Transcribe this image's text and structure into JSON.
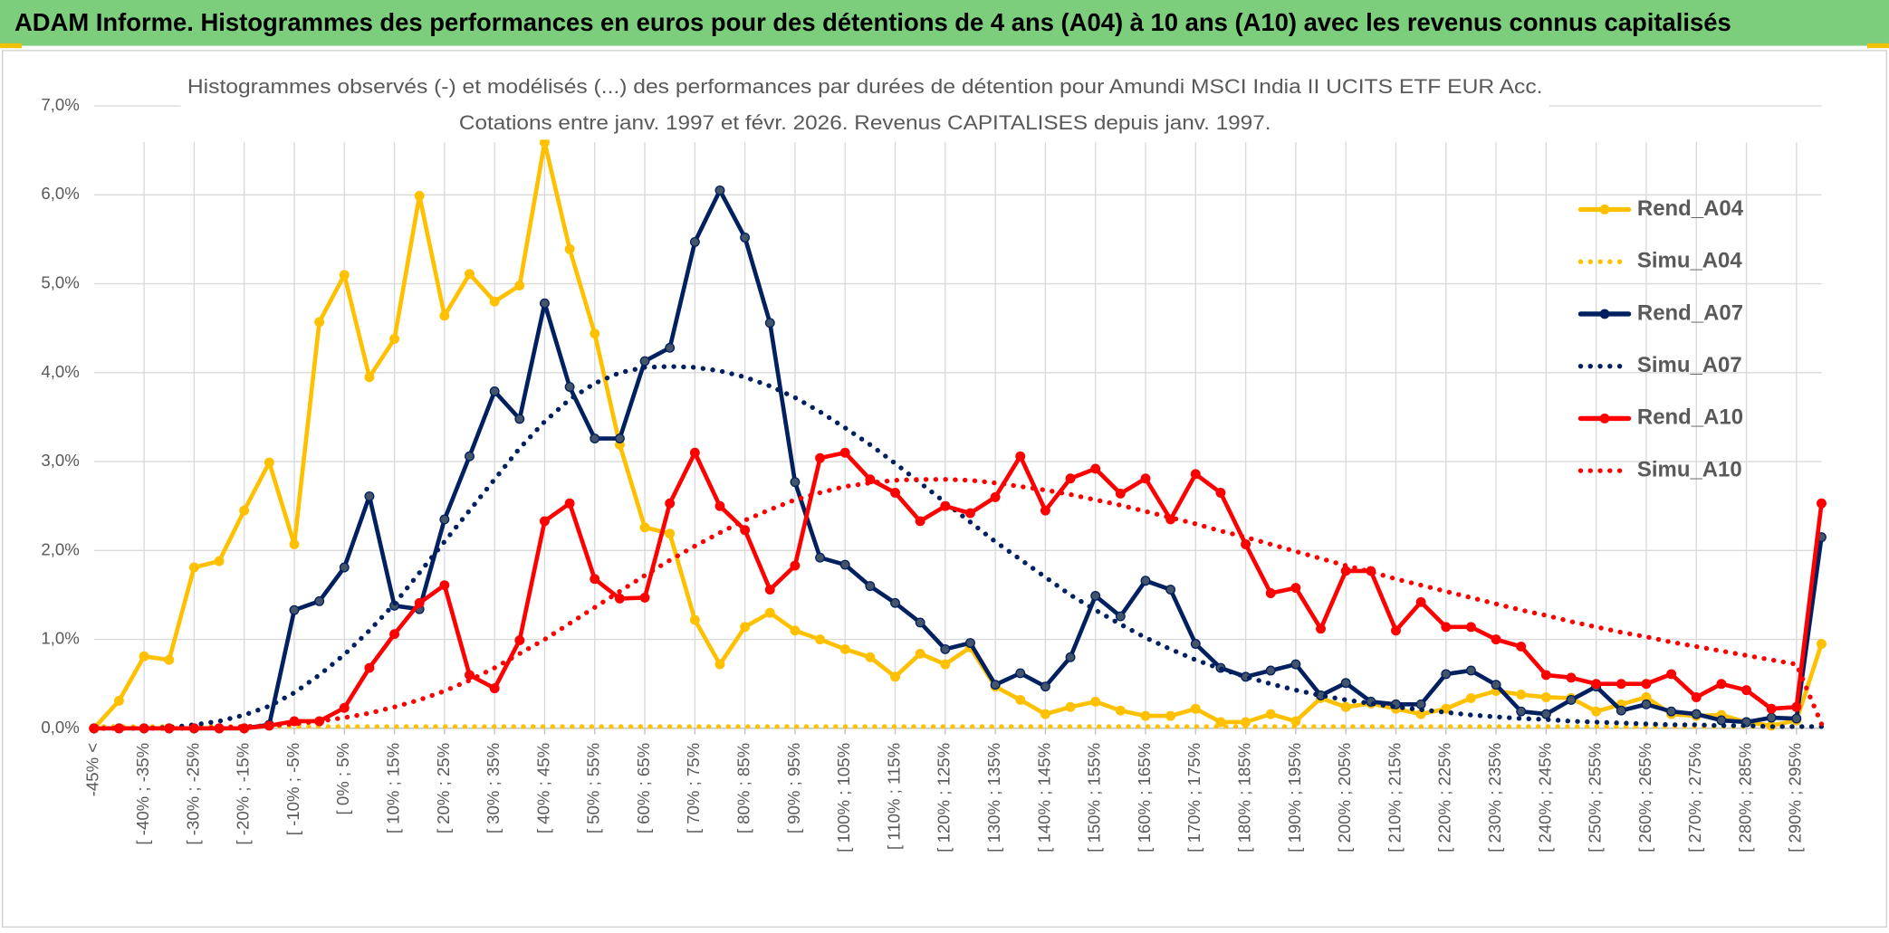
{
  "header": {
    "title": "ADAM Informe. Histogrammes des performances en euros pour des détentions de 4 ans (A04) à 10 ans (A10) avec les revenus connus capitalisés"
  },
  "chart_data": {
    "type": "line",
    "title": "Histogrammes observés (-) et modélisés (...) des performances par durées de détention pour Amundi MSCI India II UCITS ETF EUR Acc.",
    "subtitle": "Cotations entre janv. 1997 et févr. 2026. Revenus CAPITALISES depuis janv. 1997.",
    "categories": [
      "-45% <",
      null,
      "[ -40% ; -35%",
      null,
      "[ -30% ; -25%",
      null,
      "[ -20% ; -15%",
      null,
      "[ -10% ; -5%",
      null,
      "[ 0% ; 5%",
      null,
      "[ 10% ; 15%",
      null,
      "[ 20% ; 25%",
      null,
      "[ 30% ; 35%",
      null,
      "[ 40% ; 45%",
      null,
      "[ 50% ; 55%",
      null,
      "[ 60% ; 65%",
      null,
      "[ 70% ; 75%",
      null,
      "[ 80% ; 85%",
      null,
      "[ 90% ; 95%",
      null,
      "[ 100% ; 105%",
      null,
      "[ 110% ; 115%",
      null,
      "[ 120% ; 125%",
      null,
      "[ 130% ; 135%",
      null,
      "[ 140% ; 145%",
      null,
      "[ 150% ; 155%",
      null,
      "[ 160% ; 165%",
      null,
      "[ 170% ; 175%",
      null,
      "[ 180% ; 185%",
      null,
      "[ 190% ; 195%",
      null,
      "[ 200% ; 205%",
      null,
      "[ 210% ; 215%",
      null,
      "[ 220% ; 225%",
      null,
      "[ 230% ; 235%",
      null,
      "[ 240% ; 245%",
      null,
      "[ 250% ; 255%",
      null,
      "[ 260% ; 265%",
      null,
      "[ 270% ; 275%",
      null,
      "[ 280% ; 285%",
      null,
      "[ 290% ; 295%",
      null
    ],
    "series": [
      {
        "name": "Rend_A04",
        "color": "#ffc000",
        "style": "solid",
        "markers": true,
        "values": [
          0,
          0.31,
          0.81,
          0.77,
          1.81,
          1.88,
          2.45,
          2.99,
          2.07,
          4.57,
          5.1,
          3.95,
          4.38,
          5.99,
          4.64,
          5.11,
          4.8,
          4.98,
          6.59,
          5.39,
          4.44,
          3.19,
          2.26,
          2.19,
          1.22,
          0.72,
          1.14,
          1.3,
          1.1,
          1.0,
          0.89,
          0.8,
          0.58,
          0.84,
          0.72,
          0.91,
          0.47,
          0.32,
          0.16,
          0.24,
          0.3,
          0.2,
          0.14,
          0.14,
          0.22,
          0.07,
          0.07,
          0.16,
          0.08,
          0.34,
          0.24,
          0.28,
          0.22,
          0.16,
          0.22,
          0.34,
          0.42,
          0.38,
          0.35,
          0.34,
          0.19,
          0.27,
          0.35,
          0.16,
          0.14,
          0.15,
          0.07,
          0.03,
          0.09,
          0.95
        ]
      },
      {
        "name": "Simu_A04",
        "color": "#ffc000",
        "style": "dotted",
        "markers": false,
        "values": [
          0.02,
          0.02,
          0.02,
          0.02,
          0.02,
          0.02,
          0.02,
          0.02,
          0.02,
          0.02,
          0.02,
          0.02,
          0.02,
          0.02,
          0.02,
          0.02,
          0.02,
          0.02,
          0.02,
          0.02,
          0.02,
          0.02,
          0.02,
          0.02,
          0.02,
          0.02,
          0.02,
          0.02,
          0.02,
          0.02,
          0.02,
          0.02,
          0.02,
          0.02,
          0.02,
          0.02,
          0.02,
          0.02,
          0.02,
          0.02,
          0.02,
          0.02,
          0.02,
          0.02,
          0.02,
          0.02,
          0.02,
          0.02,
          0.02,
          0.02,
          0.02,
          0.02,
          0.02,
          0.02,
          0.02,
          0.02,
          0.02,
          0.02,
          0.02,
          0.02,
          0.02,
          0.02,
          0.02,
          0.02,
          0.02,
          0.02,
          0.02,
          0.02,
          0.02,
          0.02
        ]
      },
      {
        "name": "Rend_A07",
        "color": "#002060",
        "style": "solid",
        "markers": true,
        "values": [
          0,
          0,
          0,
          0,
          0,
          0,
          0,
          0.04,
          1.33,
          1.43,
          1.81,
          2.61,
          1.38,
          1.34,
          2.35,
          3.06,
          3.79,
          3.48,
          4.78,
          3.84,
          3.26,
          3.26,
          4.13,
          4.28,
          5.47,
          6.05,
          5.52,
          4.56,
          2.77,
          1.92,
          1.84,
          1.6,
          1.41,
          1.19,
          0.89,
          0.96,
          0.49,
          0.62,
          0.47,
          0.8,
          1.49,
          1.26,
          1.66,
          1.56,
          0.95,
          0.68,
          0.58,
          0.65,
          0.72,
          0.37,
          0.51,
          0.3,
          0.27,
          0.27,
          0.61,
          0.65,
          0.49,
          0.19,
          0.16,
          0.32,
          0.47,
          0.2,
          0.27,
          0.19,
          0.16,
          0.09,
          0.07,
          0.12,
          0.11,
          2.15
        ]
      },
      {
        "name": "Simu_A07",
        "color": "#002060",
        "style": "dotted",
        "markers": false,
        "values": [
          0,
          0,
          0,
          0.01,
          0.04,
          0.08,
          0.15,
          0.25,
          0.4,
          0.6,
          0.83,
          1.1,
          1.4,
          1.75,
          2.1,
          2.45,
          2.8,
          3.15,
          3.45,
          3.7,
          3.88,
          4.0,
          4.06,
          4.07,
          4.06,
          4.02,
          3.95,
          3.85,
          3.72,
          3.56,
          3.38,
          3.19,
          2.98,
          2.76,
          2.54,
          2.32,
          2.1,
          1.9,
          1.7,
          1.5,
          1.33,
          1.17,
          1.02,
          0.89,
          0.77,
          0.67,
          0.58,
          0.5,
          0.43,
          0.37,
          0.32,
          0.28,
          0.24,
          0.21,
          0.18,
          0.15,
          0.13,
          0.11,
          0.1,
          0.08,
          0.07,
          0.06,
          0.05,
          0.04,
          0.04,
          0.03,
          0.03,
          0.02,
          0.02,
          0.02
        ]
      },
      {
        "name": "Rend_A10",
        "color": "#ff0000",
        "style": "solid",
        "markers": true,
        "values": [
          0,
          0,
          0,
          0,
          0,
          0,
          0,
          0.03,
          0.08,
          0.08,
          0.23,
          0.68,
          1.06,
          1.41,
          1.61,
          0.6,
          0.45,
          0.99,
          2.33,
          2.53,
          1.68,
          1.46,
          1.47,
          2.53,
          3.1,
          2.5,
          2.23,
          1.56,
          1.83,
          3.04,
          3.1,
          2.8,
          2.65,
          2.33,
          2.5,
          2.42,
          2.6,
          3.06,
          2.45,
          2.81,
          2.92,
          2.64,
          2.81,
          2.35,
          2.86,
          2.65,
          2.07,
          1.52,
          1.58,
          1.12,
          1.77,
          1.77,
          1.1,
          1.42,
          1.14,
          1.14,
          1.0,
          0.92,
          0.6,
          0.57,
          0.5,
          0.5,
          0.5,
          0.61,
          0.35,
          0.5,
          0.43,
          0.22,
          0.24,
          2.53
        ]
      },
      {
        "name": "Simu_A10",
        "color": "#ff0000",
        "style": "dotted",
        "markers": false,
        "values": [
          0,
          0,
          0,
          0,
          0,
          0.01,
          0.02,
          0.03,
          0.05,
          0.08,
          0.12,
          0.17,
          0.24,
          0.32,
          0.42,
          0.54,
          0.68,
          0.84,
          1.0,
          1.18,
          1.36,
          1.54,
          1.72,
          1.89,
          2.05,
          2.2,
          2.34,
          2.46,
          2.57,
          2.65,
          2.72,
          2.76,
          2.79,
          2.8,
          2.8,
          2.79,
          2.76,
          2.72,
          2.68,
          2.63,
          2.57,
          2.51,
          2.44,
          2.37,
          2.3,
          2.22,
          2.15,
          2.07,
          1.99,
          1.91,
          1.83,
          1.76,
          1.68,
          1.61,
          1.54,
          1.47,
          1.4,
          1.33,
          1.27,
          1.2,
          1.14,
          1.08,
          1.03,
          0.97,
          0.92,
          0.87,
          0.82,
          0.77,
          0.72,
          0.05
        ]
      }
    ],
    "ylim": [
      0,
      7
    ],
    "yticks": [
      {
        "value": 0,
        "label": "0,0%"
      },
      {
        "value": 1,
        "label": "1,0%"
      },
      {
        "value": 2,
        "label": "2,0%"
      },
      {
        "value": 3,
        "label": "3,0%"
      },
      {
        "value": 4,
        "label": "4,0%"
      },
      {
        "value": 5,
        "label": "5,0%"
      },
      {
        "value": 6,
        "label": "6,0%"
      },
      {
        "value": 7,
        "label": "7,0%"
      }
    ],
    "grid": true,
    "legend": "right"
  }
}
